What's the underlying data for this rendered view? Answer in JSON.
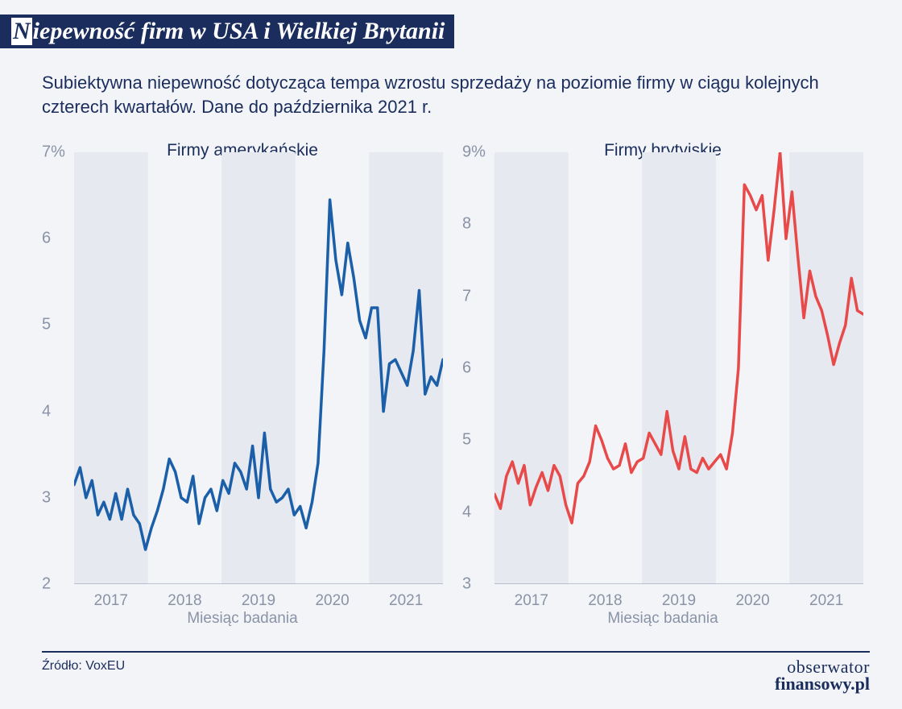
{
  "title_prefix": "N",
  "title_rest": "iepewność firm w USA i Wielkiej Brytanii",
  "subtitle": "Subiektywna niepewność dotycząca tempa wzrostu sprzedaży na poziomie firmy w ciągu kolejnych czterech kwartałów. Dane do października 2021 r.",
  "source_label": "Źródło: VoxEU",
  "logo_line1": "obserwator",
  "logo_line2": "finansowy.pl",
  "xlabel": "Miesiąc badania",
  "x_years": [
    2017,
    2018,
    2019,
    2020,
    2021
  ],
  "background_color": "#f2f4f8",
  "band_color": "#e6e9f0",
  "axis_color": "#8a93a6",
  "chart_left": {
    "title": "Firmy amerykańskie",
    "color": "#1b5fa8",
    "line_width": 3.5,
    "ymin": 2,
    "ymax": 7,
    "y_ticks": [
      2,
      3,
      4,
      5,
      6,
      7
    ],
    "top_tick_suffix": "%",
    "values": [
      3.15,
      3.35,
      3.0,
      3.2,
      2.8,
      2.95,
      2.75,
      3.05,
      2.75,
      3.1,
      2.8,
      2.7,
      2.4,
      2.65,
      2.85,
      3.1,
      3.45,
      3.3,
      3.0,
      2.95,
      3.25,
      2.7,
      3.0,
      3.1,
      2.85,
      3.2,
      3.05,
      3.4,
      3.3,
      3.1,
      3.6,
      3.0,
      3.75,
      3.1,
      2.95,
      3.0,
      3.1,
      2.8,
      2.9,
      2.65,
      2.95,
      3.4,
      4.7,
      6.45,
      5.75,
      5.35,
      5.95,
      5.55,
      5.05,
      4.85,
      5.2,
      5.2,
      4.0,
      4.55,
      4.6,
      4.45,
      4.3,
      4.7,
      5.4,
      4.2,
      4.4,
      4.3,
      4.6
    ]
  },
  "chart_right": {
    "title": "Firmy brytyjskie",
    "color": "#e84a4a",
    "line_width": 3.5,
    "ymin": 3,
    "ymax": 9,
    "y_ticks": [
      3,
      4,
      5,
      6,
      7,
      8,
      9
    ],
    "top_tick_suffix": "%",
    "values": [
      4.25,
      4.05,
      4.5,
      4.7,
      4.4,
      4.65,
      4.1,
      4.35,
      4.55,
      4.3,
      4.65,
      4.5,
      4.1,
      3.85,
      4.4,
      4.5,
      4.7,
      5.2,
      5.0,
      4.75,
      4.6,
      4.65,
      4.95,
      4.55,
      4.7,
      4.75,
      5.1,
      4.95,
      4.8,
      5.4,
      4.85,
      4.6,
      5.05,
      4.6,
      4.55,
      4.75,
      4.6,
      4.7,
      4.8,
      4.6,
      5.1,
      6.0,
      8.55,
      8.4,
      8.2,
      8.4,
      7.5,
      8.2,
      9.0,
      7.8,
      8.45,
      7.55,
      6.7,
      7.35,
      7.0,
      6.8,
      6.45,
      6.05,
      6.35,
      6.6,
      7.25,
      6.8,
      6.75
    ]
  }
}
